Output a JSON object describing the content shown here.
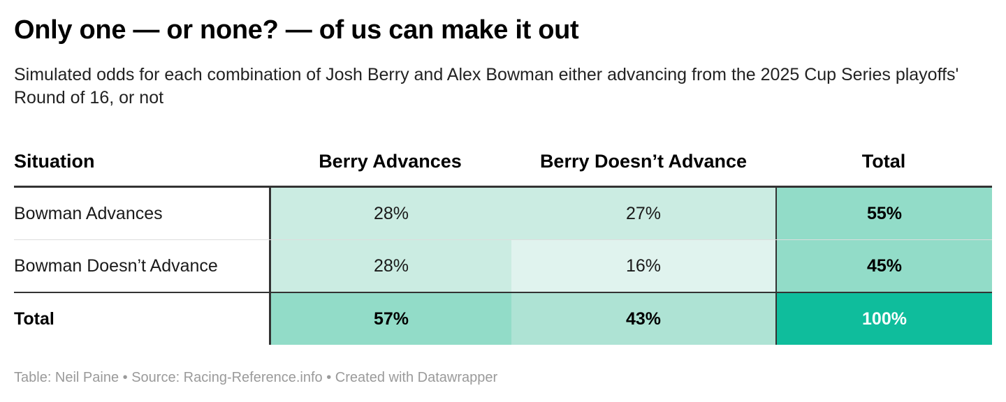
{
  "title": "Only one — or none? — of us can make it out",
  "subtitle": "Simulated odds for each combination of Josh Berry and Alex Bowman either advancing from the 2025 Cup Series playoffs' Round of 16, or not",
  "colors": {
    "shade_light": "#e0f3ee",
    "shade_mid": "#cbece2",
    "shade_strong": "#aee3d4",
    "shade_stronger": "#92dcc8",
    "shade_full": "#0fbd9c",
    "rule": "#333333"
  },
  "chart_data": {
    "type": "table",
    "columns": [
      "Situation",
      "Berry Advances",
      "Berry Doesn’t Advance",
      "Total"
    ],
    "rows": [
      {
        "label": "Bowman Advances",
        "values": [
          "28%",
          "27%",
          "55%"
        ],
        "shades": [
          "shade_mid",
          "shade_mid",
          "shade_stronger"
        ]
      },
      {
        "label": "Bowman Doesn’t Advance",
        "values": [
          "28%",
          "16%",
          "45%"
        ],
        "shades": [
          "shade_mid",
          "shade_light",
          "shade_stronger"
        ]
      },
      {
        "label": "Total",
        "values": [
          "57%",
          "43%",
          "100%"
        ],
        "shades": [
          "shade_stronger",
          "shade_strong",
          "shade_full"
        ]
      }
    ]
  },
  "footer": "Table: Neil Paine • Source: Racing-Reference.info • Created with Datawrapper"
}
